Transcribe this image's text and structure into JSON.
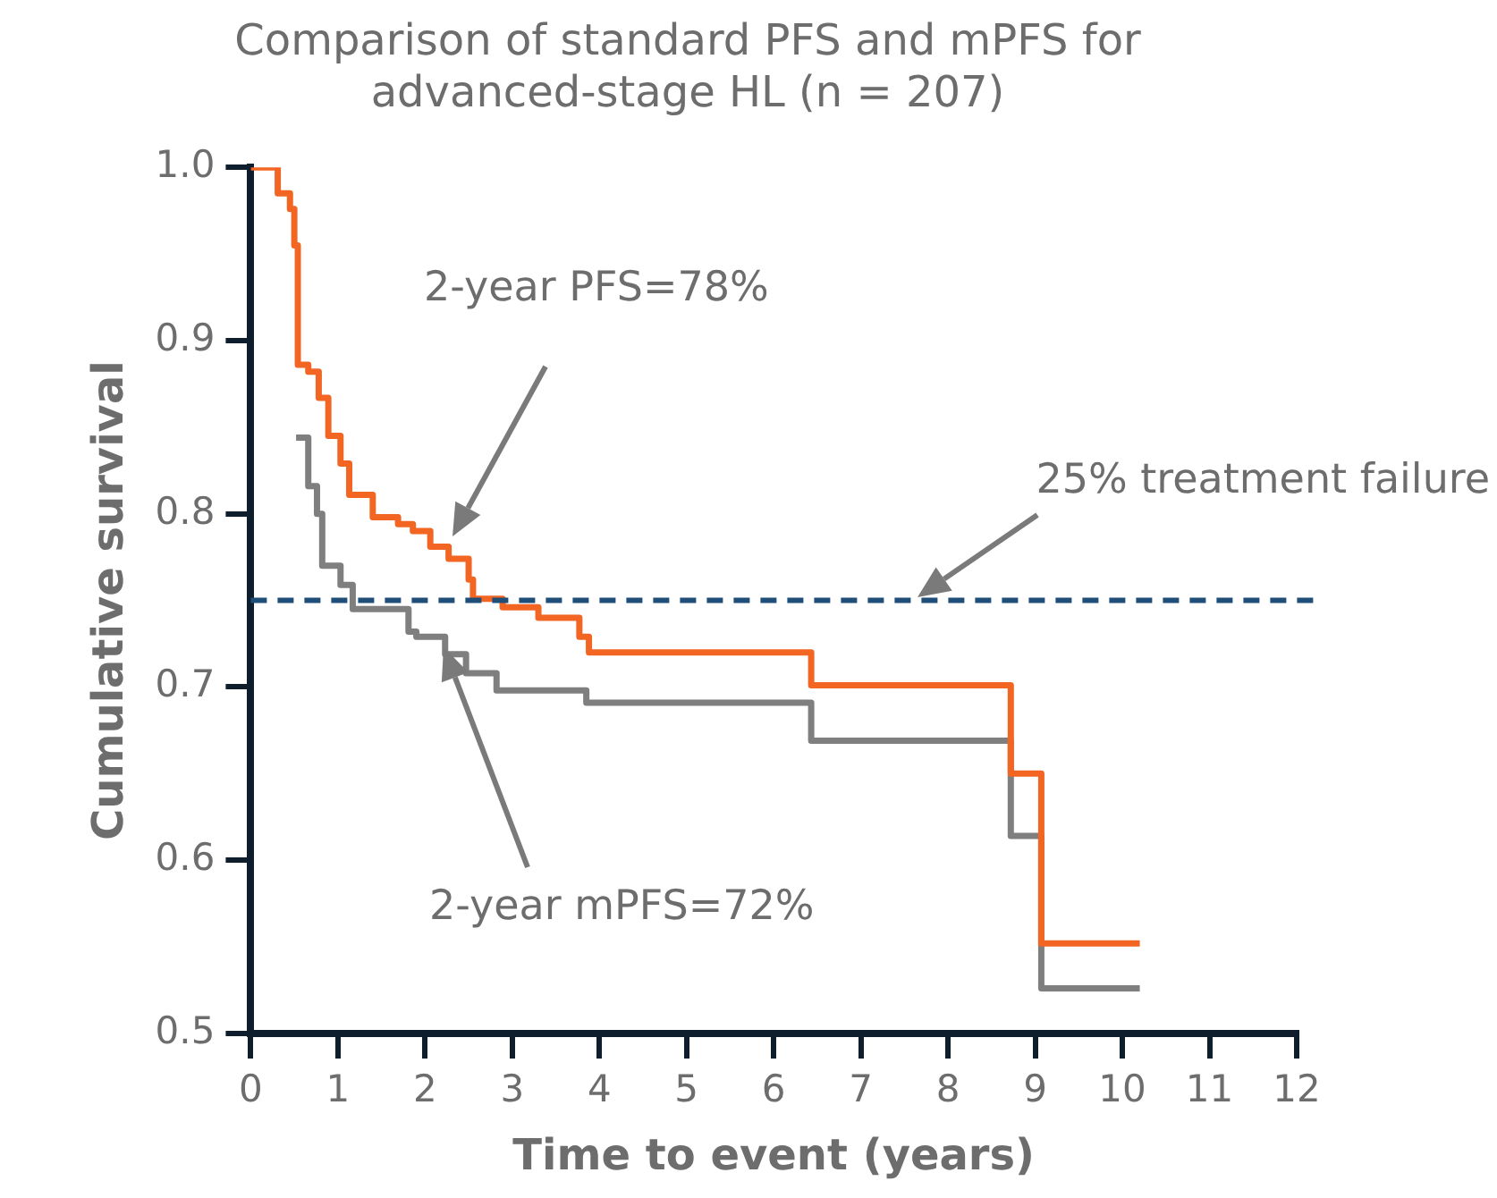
{
  "chart_data": {
    "type": "step",
    "title": [
      "Comparison of standard PFS and mPFS for",
      "advanced-stage HL (n = 207)"
    ],
    "xlabel": "Time to event (years)",
    "ylabel": "Cumulative survival",
    "series": [
      {
        "color": "#f26522",
        "x": [
          0,
          0.31,
          0.45,
          0.5,
          0.54,
          0.66,
          0.78,
          0.89,
          1.03,
          1.13,
          1.4,
          1.69,
          1.86,
          2.06,
          2.27,
          2.5,
          2.55,
          2.89,
          3.3,
          3.77,
          3.88,
          6.43,
          8.72,
          9.07,
          10.2
        ],
        "values": [
          1,
          0.985,
          0.976,
          0.955,
          0.886,
          0.882,
          0.867,
          0.845,
          0.829,
          0.811,
          0.798,
          0.794,
          0.79,
          0.781,
          0.774,
          0.762,
          0.751,
          0.746,
          0.74,
          0.729,
          0.72,
          0.701,
          0.65,
          0.552,
          0.552
        ]
      },
      {
        "color": "#7f7f7f",
        "x": [
          0.52,
          0.66,
          0.76,
          0.82,
          1.03,
          1.17,
          1.81,
          1.9,
          2.23,
          2.47,
          2.82,
          3.85,
          6.43,
          8.72,
          9.07,
          10.2
        ],
        "values": [
          0.844,
          0.816,
          0.8,
          0.77,
          0.759,
          0.745,
          0.732,
          0.729,
          0.719,
          0.708,
          0.698,
          0.691,
          0.669,
          0.614,
          0.526,
          0.526
        ]
      }
    ],
    "annotations": [
      "2-year PFS=78%",
      "2-year mPFS=72%"
    ],
    "ref_lines": [
      {
        "axis": "y",
        "value": 0.75,
        "label": "25% treatment failure",
        "color": "#1f4e79",
        "line_style": "dashed"
      }
    ],
    "xlim": [
      0,
      12
    ],
    "xticks": [
      0,
      1,
      2,
      3,
      4,
      5,
      6,
      7,
      8,
      9,
      10,
      11,
      12
    ],
    "ylim": [
      0.5,
      1
    ],
    "yticks": [
      {
        "value": 1,
        "label": "1.0"
      },
      0.9,
      0.8,
      0.7,
      0.6,
      0.5
    ],
    "grid": false,
    "legend": false,
    "marker": "none",
    "line_style": "solid"
  }
}
